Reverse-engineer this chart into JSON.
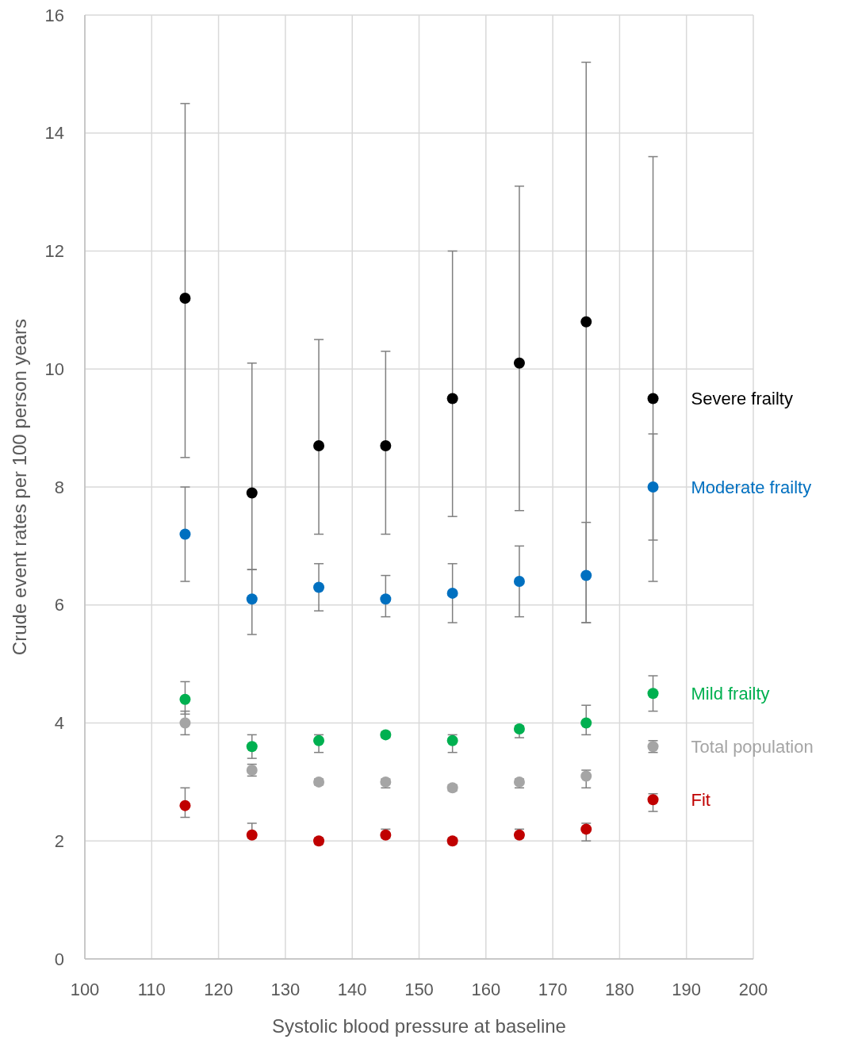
{
  "chart_data": {
    "type": "scatter",
    "xlabel": "Systolic blood pressure at baseline",
    "ylabel": "Crude event rates  per 100 person years",
    "x": [
      115,
      125,
      135,
      145,
      155,
      165,
      175,
      185
    ],
    "xlim": [
      100,
      200
    ],
    "xticks": [
      100,
      110,
      120,
      130,
      140,
      150,
      160,
      170,
      180,
      190,
      200
    ],
    "ylim": [
      0,
      16
    ],
    "yticks": [
      0,
      2,
      4,
      6,
      8,
      10,
      12,
      14,
      16
    ],
    "grid": true,
    "legend": false,
    "marker": "circle",
    "series": [
      {
        "name": "Severe frailty",
        "color": "#000000",
        "values": [
          11.2,
          7.9,
          8.7,
          8.7,
          9.5,
          10.1,
          10.8,
          9.5
        ],
        "errors": [
          [
            8.5,
            14.5
          ],
          [
            6.6,
            10.1
          ],
          [
            7.2,
            10.5
          ],
          [
            7.2,
            10.3
          ],
          [
            7.5,
            12.0
          ],
          [
            7.6,
            13.1
          ],
          [
            5.7,
            15.2
          ],
          [
            6.4,
            13.6
          ]
        ]
      },
      {
        "name": "Moderate frailty",
        "color": "#0070c0",
        "values": [
          7.2,
          6.1,
          6.3,
          6.1,
          6.2,
          6.4,
          6.5,
          8.0
        ],
        "errors": [
          [
            6.4,
            8.0
          ],
          [
            5.5,
            6.6
          ],
          [
            5.9,
            6.7
          ],
          [
            5.8,
            6.5
          ],
          [
            5.7,
            6.7
          ],
          [
            5.8,
            7.0
          ],
          [
            5.7,
            7.4
          ],
          [
            7.1,
            8.9
          ]
        ]
      },
      {
        "name": "Mild frailty",
        "color": "#00b050",
        "values": [
          4.4,
          3.6,
          3.7,
          3.8,
          3.7,
          3.9,
          4.0,
          4.5
        ],
        "errors": [
          [
            4.15,
            4.7
          ],
          [
            3.4,
            3.8
          ],
          [
            3.5,
            3.8
          ],
          [
            3.75,
            3.85
          ],
          [
            3.5,
            3.8
          ],
          [
            3.75,
            3.95
          ],
          [
            3.8,
            4.3
          ],
          [
            4.2,
            4.8
          ]
        ]
      },
      {
        "name": "Total population",
        "color": "#a5a5a5",
        "values": [
          4.0,
          3.2,
          3.0,
          3.0,
          2.9,
          3.0,
          3.1,
          3.6
        ],
        "errors": [
          [
            3.8,
            4.2
          ],
          [
            3.1,
            3.3
          ],
          [
            2.95,
            3.05
          ],
          [
            2.9,
            3.05
          ],
          [
            2.85,
            2.95
          ],
          [
            2.9,
            3.05
          ],
          [
            2.9,
            3.2
          ],
          [
            3.5,
            3.7
          ]
        ]
      },
      {
        "name": "Fit",
        "color": "#c00000",
        "values": [
          2.6,
          2.1,
          2.0,
          2.1,
          2.0,
          2.1,
          2.2,
          2.7
        ],
        "errors": [
          [
            2.4,
            2.9
          ],
          [
            2.05,
            2.3
          ],
          [
            1.95,
            2.05
          ],
          [
            2.05,
            2.2
          ],
          [
            1.95,
            2.05
          ],
          [
            2.05,
            2.2
          ],
          [
            2.0,
            2.3
          ],
          [
            2.5,
            2.8
          ]
        ]
      }
    ]
  }
}
